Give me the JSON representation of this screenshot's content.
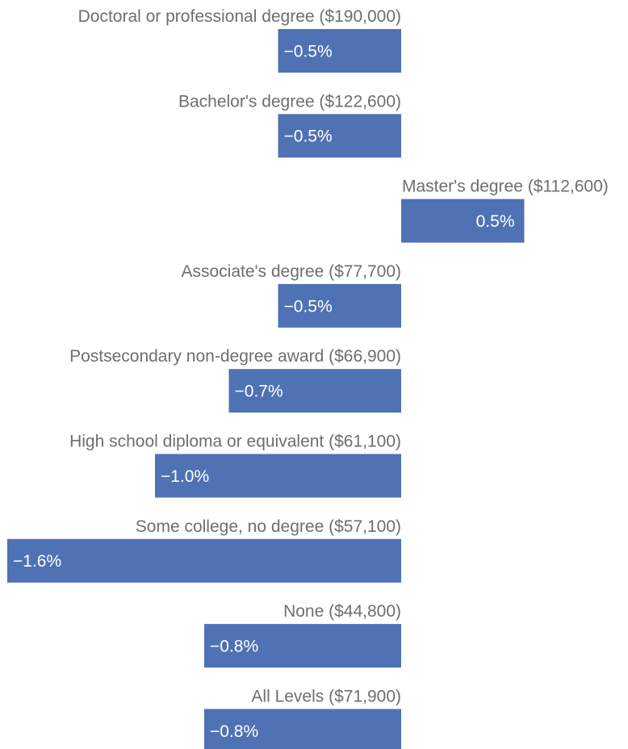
{
  "chart_data": {
    "type": "bar",
    "orientation": "horizontal",
    "categories": [
      "Doctoral or professional degree ($190,000)",
      "Bachelor's degree ($122,600)",
      "Master's degree ($112,600)",
      "Associate's degree ($77,700)",
      "Postsecondary non-degree award ($66,900)",
      "High school diploma or equivalent ($61,100)",
      "Some college, no degree ($57,100)",
      "None ($44,800)",
      "All Levels ($71,900)"
    ],
    "values": [
      -0.5,
      -0.5,
      0.5,
      -0.5,
      -0.7,
      -1.0,
      -1.6,
      -0.8,
      -0.8
    ],
    "data_labels": [
      "−0.5%",
      "−0.5%",
      "0.5%",
      "−0.5%",
      "−0.7%",
      "−1.0%",
      "−1.6%",
      "−0.8%",
      "−0.8%"
    ],
    "title": "",
    "xlabel": "",
    "ylabel": "",
    "xlim": [
      -1.6,
      0.5
    ],
    "grid": false,
    "legend": "none",
    "colors": {
      "bar": "#4f72b5",
      "label_text": "#6e6e6e",
      "data_label_text": "#ffffff"
    }
  }
}
